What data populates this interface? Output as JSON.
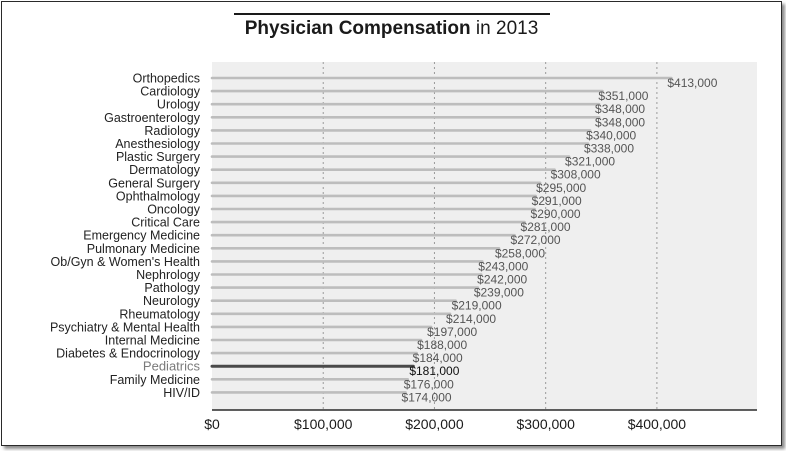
{
  "title_bold": "Physician Compensation",
  "title_rest": " in 2013",
  "colors": {
    "bar": "#bdbdbd",
    "bar_highlight": "#4a4a4a",
    "plot_bg": "#efefef",
    "grid": "#9a9a9a"
  },
  "chart_data": {
    "type": "bar",
    "orientation": "horizontal",
    "title": "Physician Compensation in 2013",
    "xlabel": "",
    "ylabel": "",
    "xlim": [
      0,
      490000
    ],
    "x_ticks": [
      0,
      100000,
      200000,
      300000,
      400000
    ],
    "x_tick_labels": [
      "$0",
      "$100,000",
      "$200,000",
      "$300,000",
      "$400,000"
    ],
    "grid": true,
    "highlight": "Pediatrics",
    "categories": [
      "Orthopedics",
      "Cardiology",
      "Urology",
      "Gastroenterology",
      "Radiology",
      "Anesthesiology",
      "Plastic Surgery",
      "Dermatology",
      "General Surgery",
      "Ophthalmology",
      "Oncology",
      "Critical Care",
      "Emergency Medicine",
      "Pulmonary Medicine",
      "Ob/Gyn & Women's Health",
      "Nephrology",
      "Pathology",
      "Neurology",
      "Rheumatology",
      "Psychiatry & Mental Health",
      "Internal Medicine",
      "Diabetes & Endocrinology",
      "Pediatrics",
      "Family Medicine",
      "HIV/ID"
    ],
    "values": [
      413000,
      351000,
      348000,
      348000,
      340000,
      338000,
      321000,
      308000,
      295000,
      291000,
      290000,
      281000,
      272000,
      258000,
      243000,
      242000,
      239000,
      219000,
      214000,
      197000,
      188000,
      184000,
      181000,
      176000,
      174000
    ],
    "value_labels": [
      "$413,000",
      "$351,000",
      "$348,000",
      "$348,000",
      "$340,000",
      "$338,000",
      "$321,000",
      "$308,000",
      "$295,000",
      "$291,000",
      "$290,000",
      "$281,000",
      "$272,000",
      "$258,000",
      "$243,000",
      "$242,000",
      "$239,000",
      "$219,000",
      "$214,000",
      "$197,000",
      "$188,000",
      "$184,000",
      "$181,000",
      "$176,000",
      "$174,000"
    ]
  }
}
